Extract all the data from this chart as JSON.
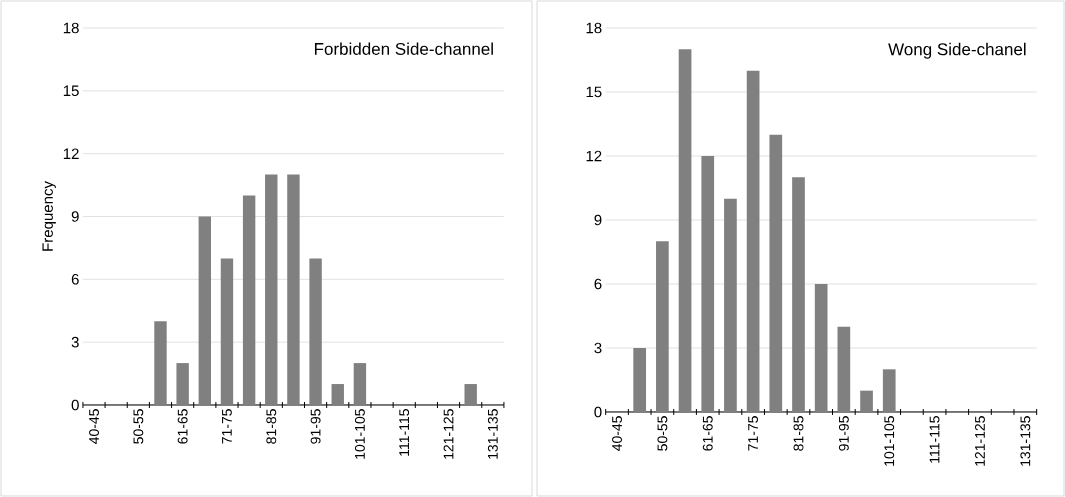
{
  "chart_data": [
    {
      "type": "bar",
      "title": "Forbidden Side-channel",
      "ylabel": "Frequency",
      "categories": [
        "40-45",
        null,
        "50-55",
        null,
        "61-65",
        null,
        "71-75",
        null,
        "81-85",
        null,
        "91-95",
        null,
        "101-105",
        null,
        "111-115",
        null,
        "121-125",
        null,
        "131-135"
      ],
      "values": [
        0,
        0,
        0,
        4,
        2,
        9,
        7,
        10,
        11,
        11,
        7,
        1,
        2,
        0,
        0,
        0,
        0,
        1,
        0
      ],
      "color": "#808080",
      "ylim": [
        0,
        18
      ],
      "yticks": [
        0,
        3,
        6,
        9,
        12,
        15,
        18
      ],
      "grid": "y"
    },
    {
      "type": "bar",
      "title": "Wong Side-chanel",
      "categories": [
        "40-45",
        null,
        "50-55",
        null,
        "61-65",
        null,
        "71-75",
        null,
        "81-85",
        null,
        "91-95",
        null,
        "101-105",
        null,
        "111-115",
        null,
        "121-125",
        null,
        "131-135"
      ],
      "values": [
        0,
        3,
        8,
        17,
        12,
        10,
        16,
        13,
        11,
        6,
        4,
        1,
        2,
        0,
        0,
        0,
        0,
        0,
        0
      ],
      "color": "#808080",
      "ylim": [
        0,
        18
      ],
      "yticks": [
        0,
        3,
        6,
        9,
        12,
        15,
        18
      ],
      "grid": "y"
    }
  ]
}
